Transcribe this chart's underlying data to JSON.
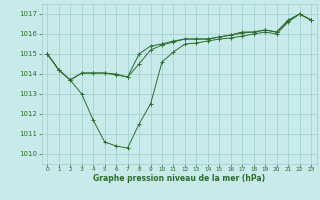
{
  "xlabel": "Graphe pression niveau de la mer (hPa)",
  "bg_color": "#c8eaea",
  "grid_color": "#9ecece",
  "line_color": "#2d6e2d",
  "ylim": [
    1009.5,
    1017.5
  ],
  "xlim": [
    -0.5,
    23.5
  ],
  "yticks": [
    1010,
    1011,
    1012,
    1013,
    1014,
    1015,
    1016,
    1017
  ],
  "xticks": [
    0,
    1,
    2,
    3,
    4,
    5,
    6,
    7,
    8,
    9,
    10,
    11,
    12,
    13,
    14,
    15,
    16,
    17,
    18,
    19,
    20,
    21,
    22,
    23
  ],
  "series1_x": [
    0,
    1,
    2,
    3,
    4,
    5,
    6,
    7,
    8,
    9,
    10,
    11,
    12,
    13,
    14,
    15,
    16,
    17,
    18,
    19,
    20,
    21,
    22,
    23
  ],
  "series1_y": [
    1015.0,
    1014.2,
    1013.7,
    1013.0,
    1011.7,
    1010.6,
    1010.4,
    1010.3,
    1011.5,
    1012.5,
    1014.6,
    1015.1,
    1015.5,
    1015.55,
    1015.65,
    1015.75,
    1015.8,
    1015.9,
    1016.0,
    1016.1,
    1016.0,
    1016.6,
    1017.0,
    1016.7
  ],
  "series2_x": [
    0,
    1,
    2,
    3,
    4,
    5,
    6,
    7,
    8,
    9,
    10,
    11,
    12,
    13,
    14,
    15,
    16,
    17,
    18,
    19,
    20,
    21,
    22,
    23
  ],
  "series2_y": [
    1015.0,
    1014.2,
    1013.7,
    1014.05,
    1014.05,
    1014.05,
    1014.0,
    1013.85,
    1014.5,
    1015.2,
    1015.45,
    1015.6,
    1015.75,
    1015.75,
    1015.75,
    1015.85,
    1015.95,
    1016.1,
    1016.1,
    1016.2,
    1016.1,
    1016.65,
    1017.0,
    1016.7
  ],
  "series3_x": [
    0,
    1,
    2,
    3,
    4,
    5,
    6,
    7,
    8,
    9,
    10,
    11,
    12,
    13,
    14,
    15,
    16,
    17,
    18,
    19,
    20,
    21,
    22,
    23
  ],
  "series3_y": [
    1015.0,
    1014.2,
    1013.7,
    1014.05,
    1014.05,
    1014.05,
    1013.95,
    1013.85,
    1015.0,
    1015.4,
    1015.5,
    1015.65,
    1015.75,
    1015.75,
    1015.75,
    1015.85,
    1015.95,
    1016.05,
    1016.1,
    1016.2,
    1016.1,
    1016.7,
    1017.0,
    1016.7
  ]
}
